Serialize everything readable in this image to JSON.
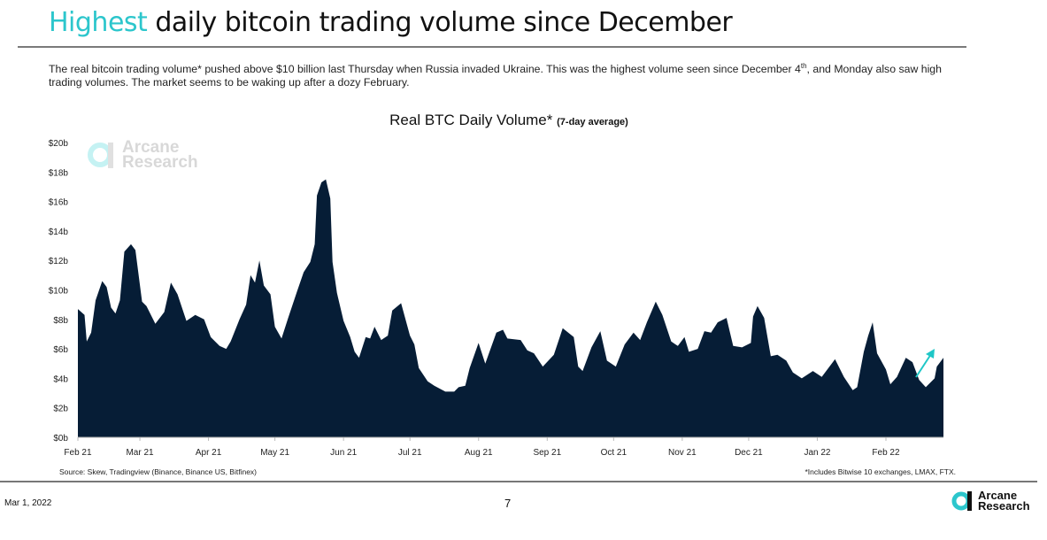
{
  "header": {
    "title_highlight": "Highest",
    "title_rest": " daily bitcoin trading volume since December",
    "paragraph_1": "The real bitcoin trading volume* pushed above $10 billion last Thursday when Russia invaded Ukraine. This was the highest volume seen since December 4",
    "paragraph_sup": "th",
    "paragraph_2": ", and Monday also saw high trading volumes. The market seems to be waking up after a dozy February."
  },
  "colors": {
    "accent": "#2cc6cc",
    "area": "#061d36",
    "arrow": "#1fc7c7"
  },
  "chart_data": {
    "type": "area",
    "title": "Real BTC Daily Volume*",
    "subtitle": "(7-day average)",
    "ylim": [
      0,
      20
    ],
    "y_ticks": [
      "$0b",
      "$2b",
      "$4b",
      "$6b",
      "$8b",
      "$10b",
      "$12b",
      "$14b",
      "$16b",
      "$18b",
      "$20b"
    ],
    "x_ticks": [
      {
        "date": "2021-02-01",
        "label": "Feb 21"
      },
      {
        "date": "2021-03-01",
        "label": "Mar 21"
      },
      {
        "date": "2021-04-01",
        "label": "Apr 21"
      },
      {
        "date": "2021-05-01",
        "label": "May 21"
      },
      {
        "date": "2021-06-01",
        "label": "Jun 21"
      },
      {
        "date": "2021-07-01",
        "label": "Jul 21"
      },
      {
        "date": "2021-08-01",
        "label": "Aug 21"
      },
      {
        "date": "2021-09-01",
        "label": "Sep 21"
      },
      {
        "date": "2021-10-01",
        "label": "Oct 21"
      },
      {
        "date": "2021-11-01",
        "label": "Nov 21"
      },
      {
        "date": "2021-12-01",
        "label": "Dec 21"
      },
      {
        "date": "2022-01-01",
        "label": "Jan 22"
      },
      {
        "date": "2022-02-01",
        "label": "Feb 22"
      }
    ],
    "grid": false,
    "unit": "billion USD",
    "annotation": "upward-arrow",
    "points": [
      [
        "2021-02-01",
        8.7
      ],
      [
        "2021-02-04",
        8.3
      ],
      [
        "2021-02-05",
        6.5
      ],
      [
        "2021-02-07",
        7.1
      ],
      [
        "2021-02-09",
        9.3
      ],
      [
        "2021-02-12",
        10.6
      ],
      [
        "2021-02-14",
        10.2
      ],
      [
        "2021-02-16",
        8.8
      ],
      [
        "2021-02-18",
        8.4
      ],
      [
        "2021-02-20",
        9.3
      ],
      [
        "2021-02-22",
        12.6
      ],
      [
        "2021-02-25",
        13.1
      ],
      [
        "2021-02-27",
        12.7
      ],
      [
        "2021-03-02",
        9.2
      ],
      [
        "2021-03-04",
        8.9
      ],
      [
        "2021-03-08",
        7.7
      ],
      [
        "2021-03-12",
        8.5
      ],
      [
        "2021-03-15",
        10.5
      ],
      [
        "2021-03-18",
        9.7
      ],
      [
        "2021-03-22",
        7.9
      ],
      [
        "2021-03-26",
        8.3
      ],
      [
        "2021-03-30",
        8.0
      ],
      [
        "2021-04-02",
        6.8
      ],
      [
        "2021-04-06",
        6.2
      ],
      [
        "2021-04-09",
        6.0
      ],
      [
        "2021-04-11",
        6.5
      ],
      [
        "2021-04-15",
        8.0
      ],
      [
        "2021-04-18",
        9.0
      ],
      [
        "2021-04-20",
        11.0
      ],
      [
        "2021-04-22",
        10.5
      ],
      [
        "2021-04-24",
        12.0
      ],
      [
        "2021-04-26",
        10.3
      ],
      [
        "2021-04-29",
        9.7
      ],
      [
        "2021-05-01",
        7.5
      ],
      [
        "2021-05-04",
        6.7
      ],
      [
        "2021-05-07",
        8.1
      ],
      [
        "2021-05-11",
        9.9
      ],
      [
        "2021-05-14",
        11.2
      ],
      [
        "2021-05-17",
        11.9
      ],
      [
        "2021-05-19",
        13.1
      ],
      [
        "2021-05-20",
        16.4
      ],
      [
        "2021-05-22",
        17.3
      ],
      [
        "2021-05-24",
        17.5
      ],
      [
        "2021-05-26",
        16.2
      ],
      [
        "2021-05-27",
        11.9
      ],
      [
        "2021-05-29",
        9.8
      ],
      [
        "2021-06-01",
        7.9
      ],
      [
        "2021-06-04",
        6.8
      ],
      [
        "2021-06-06",
        5.8
      ],
      [
        "2021-06-08",
        5.4
      ],
      [
        "2021-06-11",
        6.8
      ],
      [
        "2021-06-13",
        6.7
      ],
      [
        "2021-06-15",
        7.5
      ],
      [
        "2021-06-18",
        6.6
      ],
      [
        "2021-06-21",
        6.9
      ],
      [
        "2021-06-23",
        8.6
      ],
      [
        "2021-06-27",
        9.1
      ],
      [
        "2021-07-01",
        6.9
      ],
      [
        "2021-07-03",
        6.3
      ],
      [
        "2021-07-05",
        4.7
      ],
      [
        "2021-07-09",
        3.8
      ],
      [
        "2021-07-12",
        3.5
      ],
      [
        "2021-07-17",
        3.1
      ],
      [
        "2021-07-21",
        3.1
      ],
      [
        "2021-07-23",
        3.4
      ],
      [
        "2021-07-26",
        3.5
      ],
      [
        "2021-07-28",
        4.7
      ],
      [
        "2021-08-01",
        6.4
      ],
      [
        "2021-08-04",
        5.0
      ],
      [
        "2021-08-09",
        7.1
      ],
      [
        "2021-08-12",
        7.3
      ],
      [
        "2021-08-14",
        6.7
      ],
      [
        "2021-08-20",
        6.6
      ],
      [
        "2021-08-23",
        5.9
      ],
      [
        "2021-08-26",
        5.7
      ],
      [
        "2021-08-30",
        4.8
      ],
      [
        "2021-09-04",
        5.6
      ],
      [
        "2021-09-08",
        7.4
      ],
      [
        "2021-09-13",
        6.8
      ],
      [
        "2021-09-15",
        4.8
      ],
      [
        "2021-09-17",
        4.5
      ],
      [
        "2021-09-21",
        6.1
      ],
      [
        "2021-09-25",
        7.2
      ],
      [
        "2021-09-28",
        5.2
      ],
      [
        "2021-10-02",
        4.8
      ],
      [
        "2021-10-06",
        6.3
      ],
      [
        "2021-10-10",
        7.1
      ],
      [
        "2021-10-13",
        6.6
      ],
      [
        "2021-10-16",
        7.8
      ],
      [
        "2021-10-20",
        9.2
      ],
      [
        "2021-10-23",
        8.3
      ],
      [
        "2021-10-27",
        6.5
      ],
      [
        "2021-10-30",
        6.2
      ],
      [
        "2021-11-02",
        6.8
      ],
      [
        "2021-11-04",
        5.8
      ],
      [
        "2021-11-08",
        6.0
      ],
      [
        "2021-11-11",
        7.2
      ],
      [
        "2021-11-14",
        7.1
      ],
      [
        "2021-11-17",
        7.8
      ],
      [
        "2021-11-21",
        8.1
      ],
      [
        "2021-11-24",
        6.2
      ],
      [
        "2021-11-28",
        6.1
      ],
      [
        "2021-12-02",
        6.4
      ],
      [
        "2021-12-03",
        8.2
      ],
      [
        "2021-12-05",
        8.9
      ],
      [
        "2021-12-08",
        8.1
      ],
      [
        "2021-12-11",
        5.5
      ],
      [
        "2021-12-14",
        5.6
      ],
      [
        "2021-12-18",
        5.2
      ],
      [
        "2021-12-21",
        4.4
      ],
      [
        "2021-12-25",
        4.0
      ],
      [
        "2021-12-30",
        4.5
      ],
      [
        "2022-01-03",
        4.1
      ],
      [
        "2022-01-06",
        4.7
      ],
      [
        "2022-01-09",
        5.3
      ],
      [
        "2022-01-13",
        4.1
      ],
      [
        "2022-01-17",
        3.2
      ],
      [
        "2022-01-19",
        3.4
      ],
      [
        "2022-01-22",
        5.8
      ],
      [
        "2022-01-24",
        6.9
      ],
      [
        "2022-01-26",
        7.8
      ],
      [
        "2022-01-28",
        5.7
      ],
      [
        "2022-02-01",
        4.6
      ],
      [
        "2022-02-03",
        3.6
      ],
      [
        "2022-02-06",
        4.1
      ],
      [
        "2022-02-10",
        5.4
      ],
      [
        "2022-02-13",
        5.1
      ],
      [
        "2022-02-16",
        3.9
      ],
      [
        "2022-02-19",
        3.4
      ],
      [
        "2022-02-23",
        4.0
      ],
      [
        "2022-02-24",
        4.8
      ],
      [
        "2022-02-27",
        5.4
      ]
    ]
  },
  "watermark": {
    "line1": "Arcane",
    "line2": "Research"
  },
  "footer": {
    "source": "Source: Skew, Tradingview (Binance, Binance US, Bitfinex)",
    "note": "*Includes Bitwise 10 exchanges, LMAX, FTX.",
    "date": "Mar 1, 2022",
    "page": "7",
    "logo_line1": "Arcane",
    "logo_line2": "Research"
  }
}
